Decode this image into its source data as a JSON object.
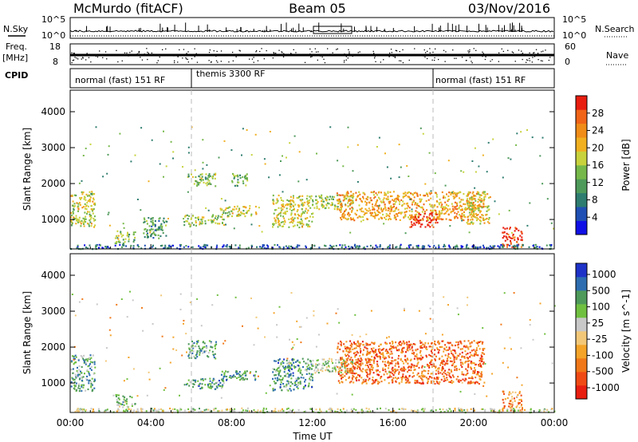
{
  "header": {
    "station": "McMurdo (fitACF)",
    "beam": "Beam 05",
    "date": "03/Nov/2016"
  },
  "left_labels": {
    "nsky": "N.Sky",
    "freq": "Freq.",
    "freq_unit": "[MHz]",
    "cpid": "CPID"
  },
  "right_labels": {
    "nsearch": "N.Search",
    "nave": "Nave"
  },
  "strip_ticks": {
    "noise_left": [
      "10^5",
      "10^0"
    ],
    "noise_right": [
      "10^5",
      "10^0"
    ],
    "freq_left": [
      "18",
      "8"
    ],
    "nave_right": [
      "60",
      "0"
    ]
  },
  "cpid_modes": [
    {
      "label": "normal (fast) 151 RF",
      "start_hour": 0,
      "end_hour": 6
    },
    {
      "label": "themis 3300 RF",
      "start_hour": 6,
      "end_hour": 18
    },
    {
      "label": "normal (fast) 151 RF",
      "start_hour": 18,
      "end_hour": 24
    }
  ],
  "colors": {
    "power": [
      "#1010e6",
      "#2050b4",
      "#2e7d70",
      "#4e9a5a",
      "#76b84a",
      "#c8d23c",
      "#f0b020",
      "#f08c18",
      "#f06418",
      "#e81e10"
    ],
    "velocity": [
      "#e81e10",
      "#f04a14",
      "#f07818",
      "#f4a428",
      "#f2c878",
      "#c8c8c8",
      "#70c040",
      "#4e9a5a",
      "#2e6eb0",
      "#1e32c8"
    ]
  },
  "chart_data": [
    {
      "type": "heatmap",
      "name": "power",
      "xlabel": "",
      "ylabel": "Slant Range [km]",
      "xlim": [
        0,
        24
      ],
      "ylim": [
        180,
        4600
      ],
      "x_ticks": [
        0,
        4,
        8,
        12,
        16,
        20,
        24
      ],
      "y_ticks": [
        1000,
        2000,
        3000,
        4000
      ],
      "colorbar": {
        "label": "Power [dB]",
        "range": [
          0,
          32
        ],
        "tick_values": [
          4,
          8,
          12,
          16,
          20,
          24,
          28
        ],
        "tick_labels": [
          "4",
          "8",
          "12",
          "16",
          "20",
          "24",
          "28"
        ]
      },
      "echo_regions": [
        {
          "t": [
            0.0,
            1.2
          ],
          "range_km": [
            800,
            1800
          ],
          "level": 0.55
        },
        {
          "t": [
            2.2,
            3.2
          ],
          "range_km": [
            350,
            700
          ],
          "level": 0.45
        },
        {
          "t": [
            3.6,
            4.8
          ],
          "range_km": [
            500,
            1100
          ],
          "level": 0.35
        },
        {
          "t": [
            5.6,
            7.6
          ],
          "range_km": [
            850,
            1150
          ],
          "level": 0.5
        },
        {
          "t": [
            7.4,
            9.2
          ],
          "range_km": [
            1100,
            1400
          ],
          "level": 0.55
        },
        {
          "t": [
            5.8,
            7.2
          ],
          "range_km": [
            1950,
            2300
          ],
          "level": 0.45
        },
        {
          "t": [
            8.0,
            8.8
          ],
          "range_km": [
            1950,
            2300
          ],
          "level": 0.4
        },
        {
          "t": [
            10.0,
            12.0
          ],
          "range_km": [
            800,
            1700
          ],
          "level": 0.55
        },
        {
          "t": [
            12.0,
            14.0
          ],
          "range_km": [
            1300,
            1700
          ],
          "level": 0.5
        },
        {
          "t": [
            13.2,
            20.5
          ],
          "range_km": [
            1000,
            1800
          ],
          "level": 0.7
        },
        {
          "t": [
            16.8,
            18.2
          ],
          "range_km": [
            800,
            1200
          ],
          "level": 0.92
        },
        {
          "t": [
            19.6,
            20.8
          ],
          "range_km": [
            900,
            1800
          ],
          "level": 0.6
        },
        {
          "t": [
            21.4,
            22.4
          ],
          "range_km": [
            250,
            800
          ],
          "level": 0.9
        },
        {
          "t": [
            0.0,
            24.0
          ],
          "range_km": [
            200,
            320
          ],
          "level": 0.2
        }
      ]
    },
    {
      "type": "heatmap",
      "name": "velocity",
      "xlabel": "Time UT",
      "ylabel": "Slant Range [km]",
      "xlim": [
        0,
        24
      ],
      "ylim": [
        180,
        4600
      ],
      "x_ticks": [
        0,
        4,
        8,
        12,
        16,
        20,
        24
      ],
      "x_tick_labels": [
        "00:00",
        "04:00",
        "08:00",
        "12:00",
        "16:00",
        "20:00",
        "00:00"
      ],
      "y_ticks": [
        1000,
        2000,
        3000,
        4000
      ],
      "colorbar": {
        "label": "Velocity [m s^-1]",
        "tick_labels": [
          "1000",
          "500",
          "100",
          "25",
          "-25",
          "-100",
          "-500",
          "-1000"
        ]
      },
      "echo_regions": [
        {
          "t": [
            0.0,
            1.2
          ],
          "range_km": [
            800,
            1800
          ],
          "level": 0.7
        },
        {
          "t": [
            2.2,
            3.2
          ],
          "range_km": [
            350,
            700
          ],
          "level": 0.65
        },
        {
          "t": [
            5.6,
            7.6
          ],
          "range_km": [
            850,
            1150
          ],
          "level": 0.75
        },
        {
          "t": [
            7.4,
            9.2
          ],
          "range_km": [
            1100,
            1400
          ],
          "level": 0.75
        },
        {
          "t": [
            5.8,
            7.2
          ],
          "range_km": [
            1700,
            2200
          ],
          "level": 0.7
        },
        {
          "t": [
            10.0,
            12.0
          ],
          "range_km": [
            800,
            1700
          ],
          "level": 0.75
        },
        {
          "t": [
            12.0,
            14.0
          ],
          "range_km": [
            1300,
            1700
          ],
          "level": 0.6
        },
        {
          "t": [
            13.2,
            20.5
          ],
          "range_km": [
            1000,
            2200
          ],
          "level": 0.22
        },
        {
          "t": [
            21.4,
            22.4
          ],
          "range_km": [
            250,
            800
          ],
          "level": 0.3
        },
        {
          "t": [
            0.0,
            24.0
          ],
          "range_km": [
            200,
            320
          ],
          "level": 0.55
        }
      ]
    }
  ]
}
